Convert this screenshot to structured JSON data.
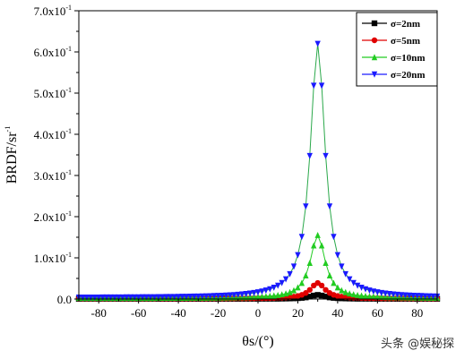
{
  "chart_data": {
    "type": "line",
    "xlabel": "θs/(°)",
    "ylabel": "BRDF/sr",
    "ylabel_superscript": "-1",
    "xlim": [
      -90,
      90
    ],
    "ylim": [
      0,
      0.7
    ],
    "x_ticks": [
      {
        "value": -80,
        "label": "-80"
      },
      {
        "value": -60,
        "label": "-60"
      },
      {
        "value": -40,
        "label": "-40"
      },
      {
        "value": -20,
        "label": "-20"
      },
      {
        "value": 0,
        "label": "0"
      },
      {
        "value": 20,
        "label": "20"
      },
      {
        "value": 40,
        "label": "40"
      },
      {
        "value": 60,
        "label": "60"
      },
      {
        "value": 80,
        "label": "80"
      }
    ],
    "y_ticks": [
      {
        "value": 0.0,
        "label": "0.0",
        "sup": ""
      },
      {
        "value": 0.1,
        "label": "1.0x10",
        "sup": "-1"
      },
      {
        "value": 0.2,
        "label": "2.0x10",
        "sup": "-1"
      },
      {
        "value": 0.3,
        "label": "3.0x10",
        "sup": "-1"
      },
      {
        "value": 0.4,
        "label": "4.0x10",
        "sup": "-1"
      },
      {
        "value": 0.5,
        "label": "5.0x10",
        "sup": "-1"
      },
      {
        "value": 0.6,
        "label": "6.0x10",
        "sup": "-1"
      },
      {
        "value": 0.7,
        "label": "7.0x10",
        "sup": "-1"
      }
    ],
    "grid": false,
    "legend_position": "top-right",
    "series": [
      {
        "name": "σ=2nm",
        "color": "#000000",
        "marker": "square",
        "peak_x": 30,
        "peak_y": 0.01,
        "baseline": 0.0005,
        "width": 4.5,
        "x_start": -90,
        "x_end": 90,
        "x_step": 2
      },
      {
        "name": "σ=5nm",
        "color": "#e00000",
        "marker": "circle",
        "peak_x": 30,
        "peak_y": 0.039,
        "baseline": 0.001,
        "width": 4.5,
        "x_start": -90,
        "x_end": 90,
        "x_step": 2
      },
      {
        "name": "σ=10nm",
        "color": "#22cc22",
        "marker": "triangle-up",
        "peak_x": 30,
        "peak_y": 0.155,
        "baseline": 0.002,
        "width": 4.5,
        "x_start": -90,
        "x_end": 90,
        "x_step": 2
      },
      {
        "name": "σ=20nm",
        "color": "#1a1aff",
        "marker": "triangle-down",
        "peak_x": 30,
        "peak_y": 0.62,
        "baseline": 0.003,
        "width": 4.5,
        "x_start": -90,
        "x_end": 90,
        "x_step": 2
      }
    ]
  },
  "watermark": "头条 @娱秘探"
}
